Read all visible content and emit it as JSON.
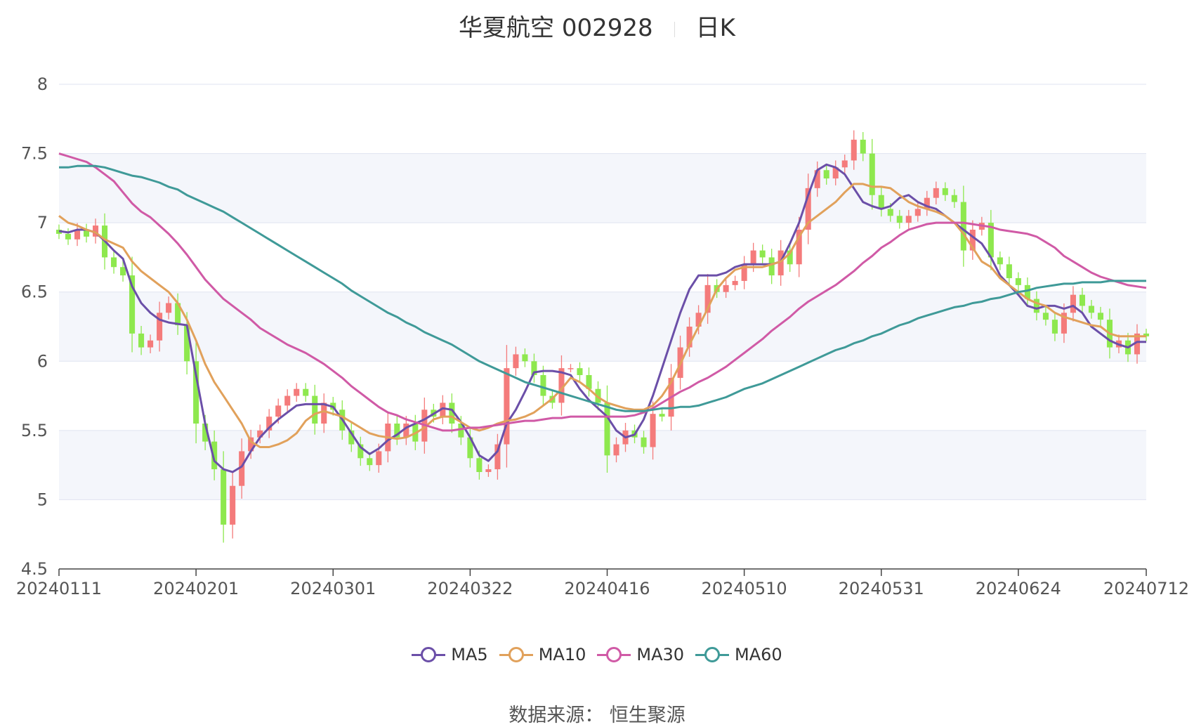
{
  "title": {
    "name": "华夏航空 002928",
    "period": "日K"
  },
  "source": "数据来源： 恒生聚源",
  "colors": {
    "up": "#f47b7b",
    "down": "#8ee84e",
    "grid": "#dfe3f0",
    "band": "#f4f6fb",
    "axis": "#555555"
  },
  "chart_data": {
    "type": "candlestick",
    "y_axis": {
      "min": 4.5,
      "max": 8,
      "ticks": [
        "4.5",
        "5",
        "5.5",
        "6",
        "6.5",
        "7",
        "7.5",
        "8"
      ]
    },
    "x_axis": {
      "ticks": [
        "20240111",
        "20240201",
        "20240301",
        "20240322",
        "20240416",
        "20240510",
        "20240531",
        "20240624",
        "20240712"
      ],
      "tick_index": [
        0,
        15,
        30,
        45,
        60,
        75,
        90,
        105,
        119
      ]
    },
    "dates_range": [
      "20240111",
      "20240712"
    ],
    "close": [
      6.92,
      6.88,
      6.95,
      6.9,
      6.98,
      6.75,
      6.68,
      6.62,
      6.2,
      6.1,
      6.15,
      6.35,
      6.42,
      6.26,
      6.0,
      5.55,
      5.42,
      5.22,
      4.82,
      5.1,
      5.35,
      5.45,
      5.5,
      5.6,
      5.68,
      5.75,
      5.8,
      5.75,
      5.55,
      5.7,
      5.65,
      5.5,
      5.4,
      5.3,
      5.25,
      5.35,
      5.55,
      5.45,
      5.55,
      5.42,
      5.65,
      5.6,
      5.7,
      5.55,
      5.45,
      5.3,
      5.2,
      5.22,
      5.4,
      5.95,
      6.05,
      6.0,
      5.9,
      5.75,
      5.7,
      5.95,
      5.95,
      5.9,
      5.8,
      5.7,
      5.32,
      5.4,
      5.5,
      5.45,
      5.38,
      5.62,
      5.6,
      5.88,
      6.1,
      6.25,
      6.35,
      6.55,
      6.5,
      6.55,
      6.58,
      6.7,
      6.8,
      6.75,
      6.62,
      6.8,
      6.7,
      6.95,
      7.25,
      7.38,
      7.32,
      7.4,
      7.45,
      7.6,
      7.5,
      7.2,
      7.1,
      7.05,
      7.0,
      7.05,
      7.1,
      7.18,
      7.25,
      7.2,
      7.15,
      6.8,
      6.95,
      7.0,
      6.75,
      6.7,
      6.6,
      6.55,
      6.45,
      6.35,
      6.3,
      6.2,
      6.35,
      6.48,
      6.4,
      6.35,
      6.3,
      6.1,
      6.15,
      6.05,
      6.2,
      6.18
    ],
    "series": [
      {
        "name": "MA5",
        "color": "#6b4fa8",
        "values": [
          6.94,
          6.93,
          6.95,
          6.95,
          6.93,
          6.87,
          6.8,
          6.74,
          6.54,
          6.42,
          6.35,
          6.3,
          6.28,
          6.27,
          6.26,
          5.9,
          5.55,
          5.28,
          5.22,
          5.2,
          5.24,
          5.35,
          5.45,
          5.52,
          5.58,
          5.63,
          5.68,
          5.69,
          5.69,
          5.69,
          5.67,
          5.58,
          5.48,
          5.38,
          5.33,
          5.37,
          5.43,
          5.47,
          5.52,
          5.55,
          5.58,
          5.62,
          5.66,
          5.65,
          5.56,
          5.45,
          5.32,
          5.28,
          5.35,
          5.55,
          5.65,
          5.78,
          5.92,
          5.93,
          5.93,
          5.92,
          5.9,
          5.8,
          5.72,
          5.66,
          5.6,
          5.5,
          5.45,
          5.47,
          5.58,
          5.75,
          5.95,
          6.15,
          6.35,
          6.52,
          6.62,
          6.62,
          6.62,
          6.64,
          6.68,
          6.7,
          6.7,
          6.7,
          6.7,
          6.72,
          6.85,
          7.0,
          7.2,
          7.38,
          7.42,
          7.4,
          7.35,
          7.25,
          7.15,
          7.12,
          7.1,
          7.12,
          7.18,
          7.2,
          7.15,
          7.12,
          7.1,
          7.05,
          7.0,
          6.95,
          6.9,
          6.85,
          6.75,
          6.62,
          6.55,
          6.48,
          6.4,
          6.38,
          6.4,
          6.4,
          6.38,
          6.4,
          6.35,
          6.25,
          6.2,
          6.15,
          6.12,
          6.1,
          6.14,
          6.14
        ]
      },
      {
        "name": "MA10",
        "color": "#e1a15b",
        "values": [
          7.05,
          7.0,
          6.98,
          6.95,
          6.93,
          6.88,
          6.85,
          6.82,
          6.72,
          6.65,
          6.6,
          6.55,
          6.5,
          6.42,
          6.3,
          6.15,
          5.98,
          5.85,
          5.75,
          5.65,
          5.55,
          5.42,
          5.38,
          5.38,
          5.4,
          5.43,
          5.48,
          5.57,
          5.62,
          5.64,
          5.62,
          5.6,
          5.56,
          5.52,
          5.48,
          5.46,
          5.45,
          5.44,
          5.45,
          5.48,
          5.52,
          5.58,
          5.6,
          5.6,
          5.56,
          5.52,
          5.5,
          5.52,
          5.55,
          5.57,
          5.58,
          5.6,
          5.63,
          5.68,
          5.73,
          5.8,
          5.88,
          5.85,
          5.8,
          5.74,
          5.7,
          5.68,
          5.66,
          5.65,
          5.65,
          5.68,
          5.75,
          5.85,
          5.98,
          6.12,
          6.25,
          6.38,
          6.52,
          6.6,
          6.66,
          6.68,
          6.68,
          6.68,
          6.7,
          6.72,
          6.78,
          6.9,
          7.0,
          7.05,
          7.1,
          7.15,
          7.22,
          7.28,
          7.28,
          7.26,
          7.26,
          7.25,
          7.2,
          7.15,
          7.12,
          7.1,
          7.08,
          7.05,
          7.0,
          6.92,
          6.82,
          6.72,
          6.68,
          6.6,
          6.55,
          6.5,
          6.45,
          6.42,
          6.4,
          6.35,
          6.32,
          6.3,
          6.28,
          6.26,
          6.25,
          6.2,
          6.18,
          6.18,
          6.18,
          6.18
        ]
      },
      {
        "name": "MA30",
        "color": "#d05aa6",
        "values": [
          7.5,
          7.48,
          7.46,
          7.44,
          7.4,
          7.35,
          7.3,
          7.22,
          7.14,
          7.08,
          7.04,
          6.98,
          6.92,
          6.85,
          6.77,
          6.68,
          6.59,
          6.52,
          6.45,
          6.4,
          6.35,
          6.3,
          6.24,
          6.2,
          6.16,
          6.12,
          6.09,
          6.06,
          6.02,
          5.98,
          5.93,
          5.88,
          5.82,
          5.77,
          5.72,
          5.67,
          5.63,
          5.61,
          5.58,
          5.56,
          5.54,
          5.52,
          5.5,
          5.5,
          5.51,
          5.52,
          5.52,
          5.53,
          5.54,
          5.55,
          5.56,
          5.57,
          5.57,
          5.58,
          5.59,
          5.59,
          5.6,
          5.6,
          5.6,
          5.6,
          5.6,
          5.6,
          5.6,
          5.61,
          5.63,
          5.66,
          5.7,
          5.74,
          5.78,
          5.81,
          5.85,
          5.88,
          5.92,
          5.96,
          6.01,
          6.06,
          6.11,
          6.16,
          6.22,
          6.27,
          6.32,
          6.38,
          6.43,
          6.47,
          6.51,
          6.55,
          6.6,
          6.65,
          6.71,
          6.76,
          6.82,
          6.86,
          6.91,
          6.95,
          6.97,
          6.99,
          7.0,
          7.0,
          7.0,
          7.0,
          6.99,
          6.98,
          6.97,
          6.95,
          6.94,
          6.93,
          6.92,
          6.9,
          6.86,
          6.82,
          6.76,
          6.72,
          6.68,
          6.64,
          6.61,
          6.59,
          6.57,
          6.55,
          6.54,
          6.53
        ]
      },
      {
        "name": "MA60",
        "color": "#3f9a98",
        "values": [
          7.4,
          7.4,
          7.41,
          7.41,
          7.41,
          7.4,
          7.38,
          7.36,
          7.34,
          7.33,
          7.31,
          7.29,
          7.26,
          7.24,
          7.2,
          7.17,
          7.14,
          7.11,
          7.08,
          7.04,
          7.0,
          6.96,
          6.92,
          6.88,
          6.84,
          6.8,
          6.76,
          6.72,
          6.68,
          6.64,
          6.6,
          6.56,
          6.51,
          6.47,
          6.43,
          6.39,
          6.35,
          6.32,
          6.28,
          6.25,
          6.21,
          6.18,
          6.15,
          6.12,
          6.08,
          6.04,
          6.0,
          5.97,
          5.94,
          5.91,
          5.88,
          5.85,
          5.83,
          5.81,
          5.79,
          5.77,
          5.75,
          5.73,
          5.71,
          5.69,
          5.67,
          5.65,
          5.64,
          5.64,
          5.64,
          5.65,
          5.66,
          5.66,
          5.67,
          5.67,
          5.68,
          5.7,
          5.72,
          5.74,
          5.77,
          5.8,
          5.82,
          5.84,
          5.87,
          5.9,
          5.93,
          5.96,
          5.99,
          6.02,
          6.05,
          6.08,
          6.1,
          6.13,
          6.15,
          6.18,
          6.2,
          6.23,
          6.26,
          6.28,
          6.31,
          6.33,
          6.35,
          6.37,
          6.39,
          6.4,
          6.42,
          6.43,
          6.45,
          6.46,
          6.48,
          6.5,
          6.51,
          6.53,
          6.54,
          6.55,
          6.56,
          6.56,
          6.57,
          6.57,
          6.57,
          6.58,
          6.58,
          6.58,
          6.58,
          6.58
        ]
      }
    ]
  }
}
